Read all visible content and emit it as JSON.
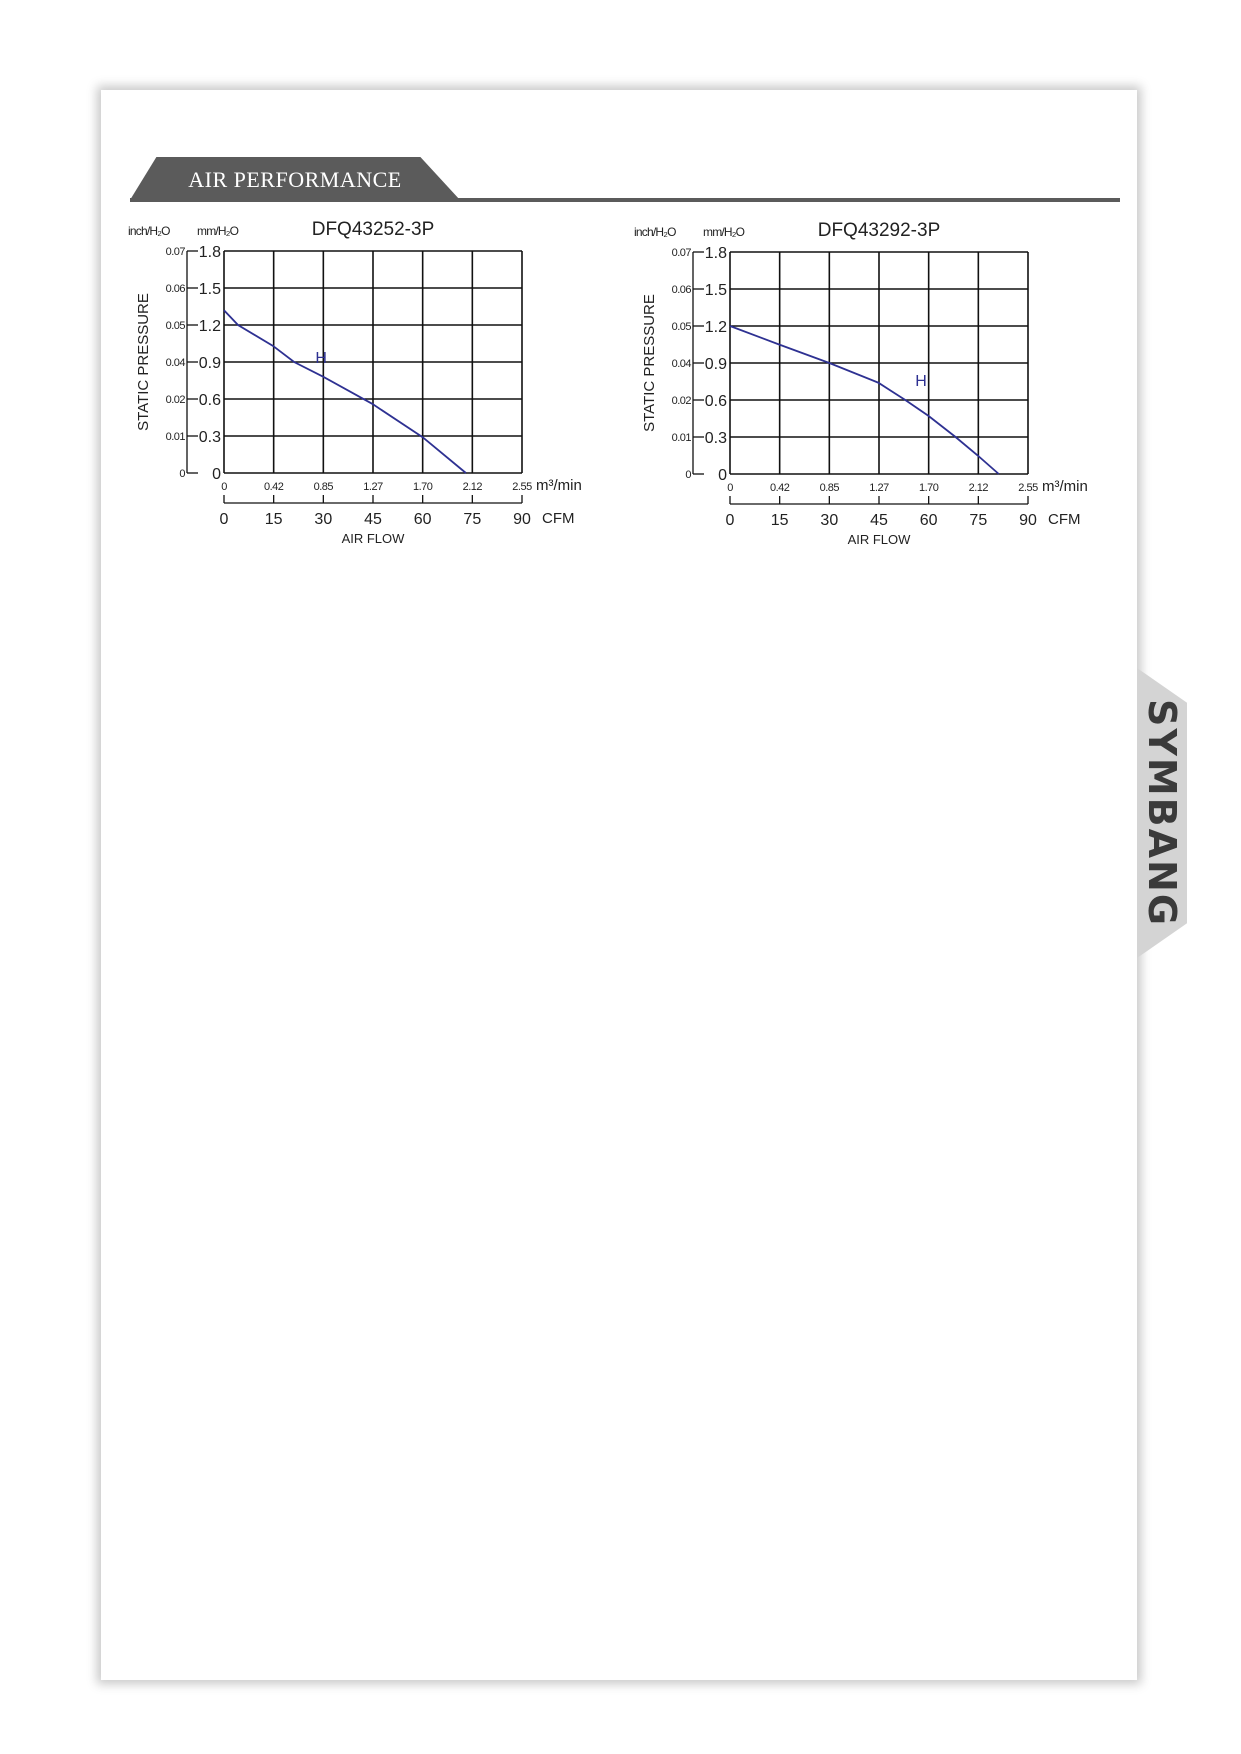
{
  "section": {
    "title": "AIR PERFORMANCE"
  },
  "brand": {
    "logo_text": "SYMBANG",
    "accent": "#c0272d"
  },
  "chart_data": [
    {
      "type": "line",
      "title": "DFQ43252-3P",
      "ylabel": "STATIC PRESSURE",
      "xlabel": "AIR FLOW",
      "y_units": {
        "left_outer": "inch/H₂O",
        "left_inner": "mm/H₂O"
      },
      "x_units": {
        "primary": "m³/min",
        "secondary": "CFM"
      },
      "xlim": [
        0,
        2.55
      ],
      "ylim": [
        0,
        1.8
      ],
      "grid": true,
      "y_ticks_mm": [
        "0",
        "0.3",
        "0.6",
        "0.9",
        "1.2",
        "1.5",
        "1.8"
      ],
      "y_ticks_inch": [
        "0",
        "0.01",
        "0.02",
        "0.04",
        "0.05",
        "0.06",
        "0.07"
      ],
      "x_ticks_m3": [
        "0",
        "0.42",
        "0.85",
        "1.27",
        "1.70",
        "2.12",
        "2.55"
      ],
      "x_ticks_cfm": [
        "0",
        "15",
        "30",
        "45",
        "60",
        "75",
        "90"
      ],
      "series": [
        {
          "name": "H",
          "color": "#2e3192",
          "x": [
            0,
            0.12,
            0.42,
            0.6,
            0.85,
            1.27,
            1.7,
            2.07
          ],
          "y": [
            1.32,
            1.2,
            1.03,
            0.9,
            0.78,
            0.56,
            0.29,
            0
          ]
        }
      ]
    },
    {
      "type": "line",
      "title": "DFQ43292-3P",
      "ylabel": "STATIC PRESSURE",
      "xlabel": "AIR FLOW",
      "y_units": {
        "left_outer": "inch/H₂O",
        "left_inner": "mm/H₂O"
      },
      "x_units": {
        "primary": "m³/min",
        "secondary": "CFM"
      },
      "xlim": [
        0,
        2.55
      ],
      "ylim": [
        0,
        1.8
      ],
      "grid": true,
      "y_ticks_mm": [
        "0",
        "0.3",
        "0.6",
        "0.9",
        "1.2",
        "1.5",
        "1.8"
      ],
      "y_ticks_inch": [
        "0",
        "0.01",
        "0.02",
        "0.04",
        "0.05",
        "0.06",
        "0.07"
      ],
      "x_ticks_m3": [
        "0",
        "0.42",
        "0.85",
        "1.27",
        "1.70",
        "2.12",
        "2.55"
      ],
      "x_ticks_cfm": [
        "0",
        "15",
        "30",
        "45",
        "60",
        "75",
        "90"
      ],
      "series": [
        {
          "name": "H",
          "color": "#2e3192",
          "x": [
            0,
            0.42,
            0.85,
            1.27,
            1.5,
            1.7,
            1.93,
            2.12,
            2.3
          ],
          "y": [
            1.2,
            1.05,
            0.9,
            0.74,
            0.6,
            0.47,
            0.3,
            0.15,
            0
          ]
        }
      ]
    }
  ]
}
